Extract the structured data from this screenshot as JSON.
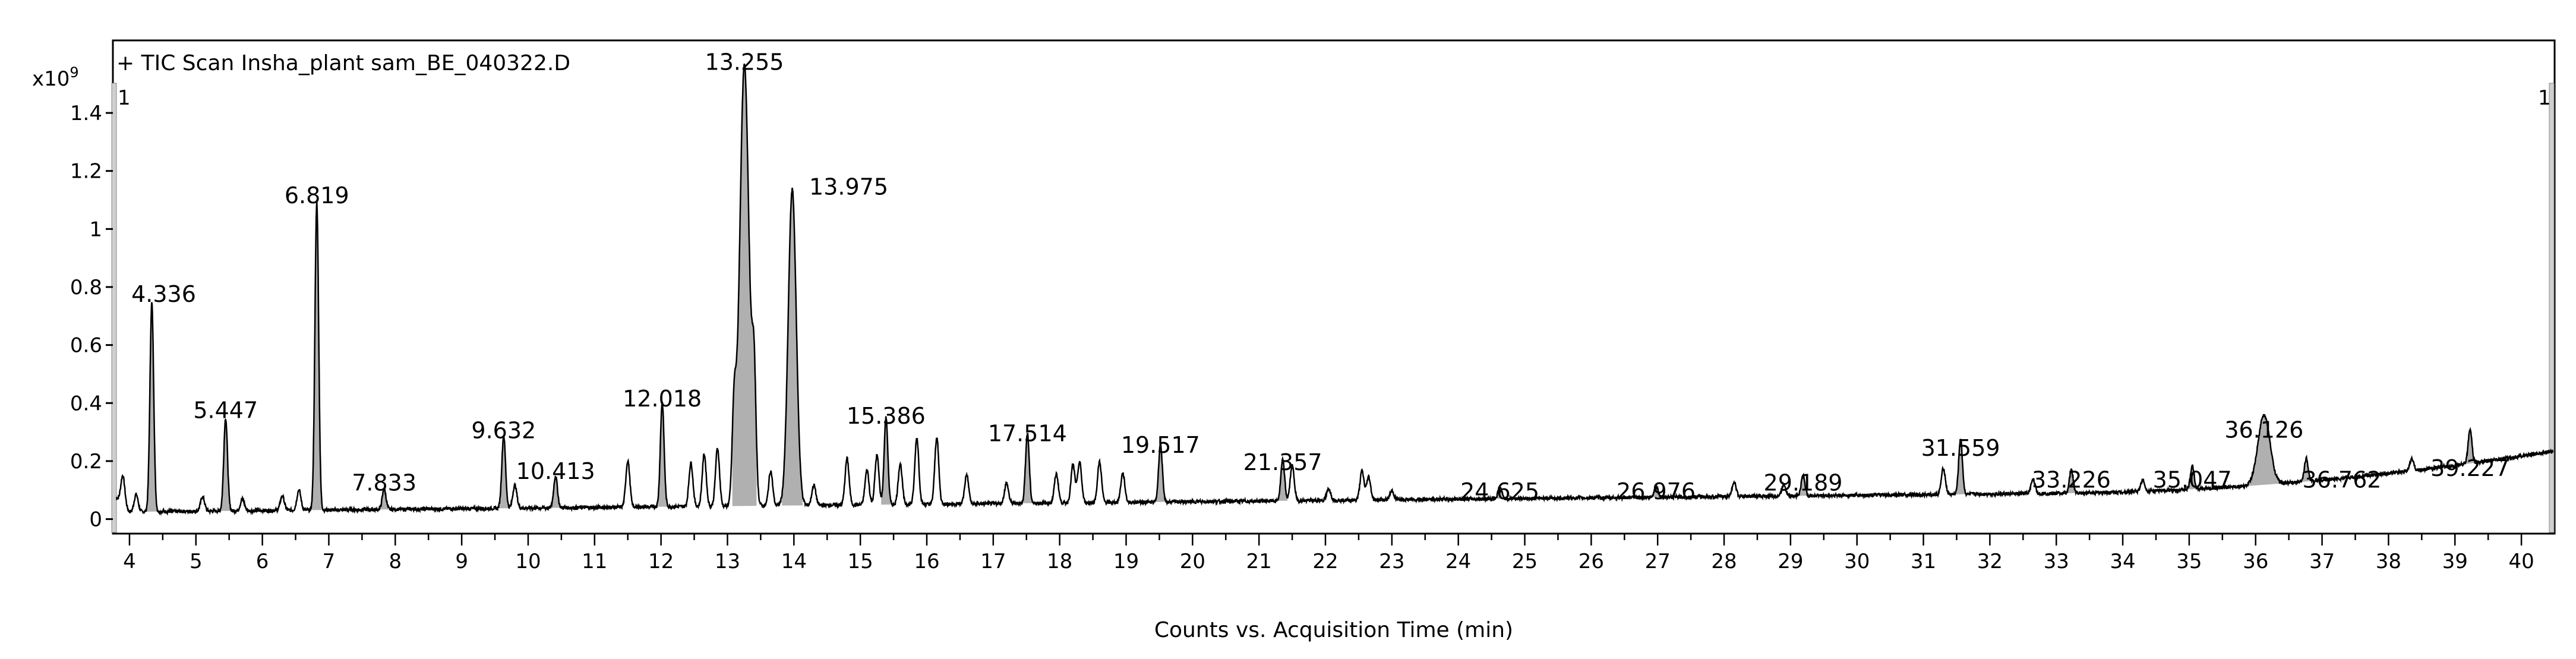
{
  "chart_data": {
    "type": "line",
    "title": "+ TIC Scan Insha_plant sam_BE_040322.D",
    "xlabel": "Counts vs. Acquisition Time (min)",
    "ylabel": "",
    "y_multiplier_label": "x10",
    "y_multiplier_exponent": "9",
    "xlim": [
      3.75,
      40.5
    ],
    "ylim": [
      -0.05,
      1.65
    ],
    "x_ticks": [
      4,
      5,
      6,
      7,
      8,
      9,
      10,
      11,
      12,
      13,
      14,
      15,
      16,
      17,
      18,
      19,
      20,
      21,
      22,
      23,
      24,
      25,
      26,
      27,
      28,
      29,
      30,
      31,
      32,
      33,
      34,
      35,
      36,
      37,
      38,
      39,
      40
    ],
    "y_ticks": [
      0,
      0.2,
      0.4,
      0.6,
      0.8,
      1,
      1.2,
      1.4
    ],
    "y_tick_labels": [
      "0",
      "0.2",
      "0.4",
      "0.6",
      "0.8",
      "1",
      "1.2",
      "1.4"
    ],
    "cursor_marks": [
      "1",
      "1"
    ],
    "series": [
      {
        "peaks": [
          {
            "x": 4.336,
            "y": 0.72,
            "label": "4.336"
          },
          {
            "x": 5.447,
            "y": 0.32,
            "label": "5.447"
          },
          {
            "x": 6.819,
            "y": 1.06,
            "label": "6.819"
          },
          {
            "x": 7.833,
            "y": 0.07,
            "label": "7.833"
          },
          {
            "x": 9.632,
            "y": 0.25,
            "label": "9.632"
          },
          {
            "x": 10.413,
            "y": 0.11,
            "label": "10.413"
          },
          {
            "x": 12.018,
            "y": 0.36,
            "label": "12.018"
          },
          {
            "x": 13.255,
            "y": 1.52,
            "label": "13.255"
          },
          {
            "x": 13.975,
            "y": 1.09,
            "label": "13.975"
          },
          {
            "x": 15.386,
            "y": 0.3,
            "label": "15.386"
          },
          {
            "x": 17.514,
            "y": 0.24,
            "label": "17.514"
          },
          {
            "x": 19.517,
            "y": 0.2,
            "label": "19.517"
          },
          {
            "x": 21.357,
            "y": 0.14,
            "label": "21.357"
          },
          {
            "x": 24.625,
            "y": 0.04,
            "label": "24.625"
          },
          {
            "x": 26.976,
            "y": 0.04,
            "label": "26.976"
          },
          {
            "x": 29.189,
            "y": 0.07,
            "label": "29.189"
          },
          {
            "x": 31.559,
            "y": 0.19,
            "label": "31.559"
          },
          {
            "x": 33.226,
            "y": 0.08,
            "label": "33.226"
          },
          {
            "x": 35.047,
            "y": 0.08,
            "label": "35.047"
          },
          {
            "x": 36.126,
            "y": 0.24,
            "label": "36.126"
          },
          {
            "x": 36.762,
            "y": 0.08,
            "label": "36.762"
          },
          {
            "x": 39.227,
            "y": 0.12,
            "label": "39.227"
          }
        ],
        "minor_peaks": [
          {
            "x": 3.9,
            "y": 0.1
          },
          {
            "x": 4.1,
            "y": 0.06
          },
          {
            "x": 5.1,
            "y": 0.05
          },
          {
            "x": 5.7,
            "y": 0.04
          },
          {
            "x": 6.3,
            "y": 0.05
          },
          {
            "x": 6.55,
            "y": 0.07
          },
          {
            "x": 9.8,
            "y": 0.08
          },
          {
            "x": 11.5,
            "y": 0.16
          },
          {
            "x": 12.45,
            "y": 0.15
          },
          {
            "x": 12.65,
            "y": 0.18
          },
          {
            "x": 12.85,
            "y": 0.2
          },
          {
            "x": 13.1,
            "y": 0.3
          },
          {
            "x": 13.4,
            "y": 0.4
          },
          {
            "x": 13.65,
            "y": 0.12
          },
          {
            "x": 14.3,
            "y": 0.07
          },
          {
            "x": 14.8,
            "y": 0.16
          },
          {
            "x": 15.1,
            "y": 0.12
          },
          {
            "x": 15.25,
            "y": 0.17
          },
          {
            "x": 15.6,
            "y": 0.14
          },
          {
            "x": 15.85,
            "y": 0.23
          },
          {
            "x": 16.15,
            "y": 0.23
          },
          {
            "x": 16.6,
            "y": 0.1
          },
          {
            "x": 17.2,
            "y": 0.07
          },
          {
            "x": 17.95,
            "y": 0.1
          },
          {
            "x": 18.2,
            "y": 0.13
          },
          {
            "x": 18.3,
            "y": 0.14
          },
          {
            "x": 18.6,
            "y": 0.14
          },
          {
            "x": 18.95,
            "y": 0.1
          },
          {
            "x": 21.5,
            "y": 0.12
          },
          {
            "x": 22.05,
            "y": 0.04
          },
          {
            "x": 22.55,
            "y": 0.1
          },
          {
            "x": 22.65,
            "y": 0.08
          },
          {
            "x": 23.0,
            "y": 0.03
          },
          {
            "x": 28.15,
            "y": 0.05
          },
          {
            "x": 28.9,
            "y": 0.04
          },
          {
            "x": 31.3,
            "y": 0.09
          },
          {
            "x": 32.65,
            "y": 0.05
          },
          {
            "x": 34.3,
            "y": 0.04
          },
          {
            "x": 38.35,
            "y": 0.04
          }
        ]
      }
    ]
  }
}
